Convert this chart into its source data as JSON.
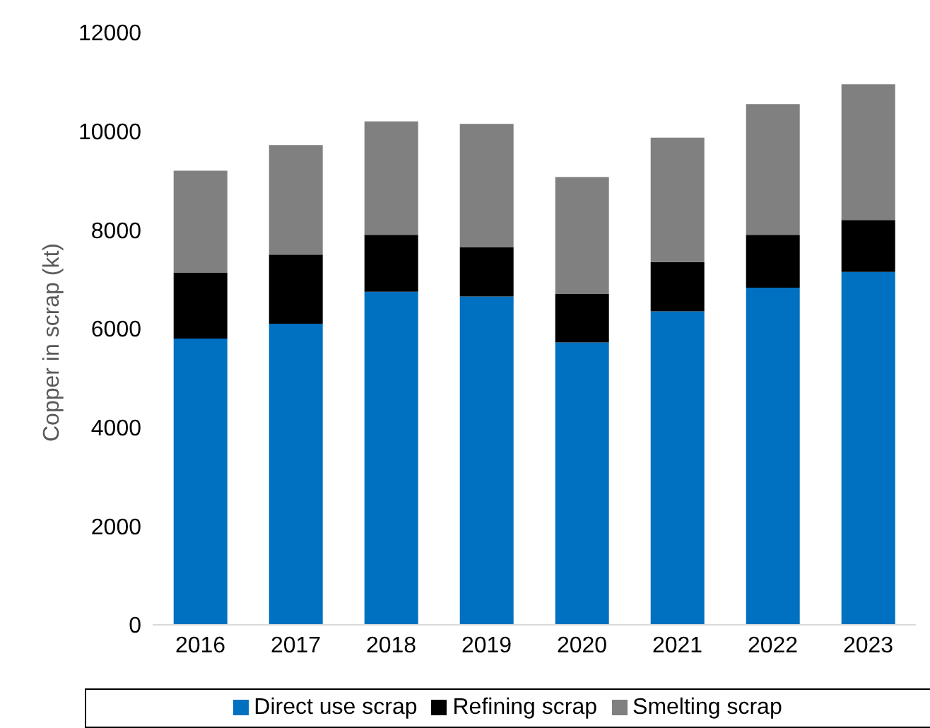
{
  "chart_data": {
    "type": "bar",
    "stacked": true,
    "ylabel": "Copper in scrap (kt)",
    "categories": [
      "2016",
      "2017",
      "2018",
      "2019",
      "2020",
      "2021",
      "2022",
      "2023"
    ],
    "series": [
      {
        "name": "Direct use scrap",
        "color": "#0070c0",
        "values": [
          5800,
          6100,
          6750,
          6650,
          5720,
          6350,
          6830,
          7150
        ]
      },
      {
        "name": "Refining scrap",
        "color": "#000000",
        "values": [
          1340,
          1400,
          1150,
          1000,
          980,
          1000,
          1070,
          1050
        ]
      },
      {
        "name": "Smelting scrap",
        "color": "#808080",
        "values": [
          2060,
          2220,
          2300,
          2500,
          2370,
          2520,
          2650,
          2750
        ]
      }
    ],
    "ylim": [
      0,
      12000
    ],
    "yticks": [
      0,
      2000,
      4000,
      6000,
      8000,
      10000,
      12000
    ],
    "grid": false,
    "legend": "bottom"
  }
}
